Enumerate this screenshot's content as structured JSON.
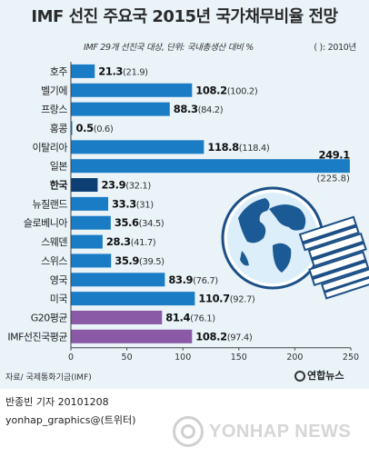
{
  "title": "IMF 선진 주요국 2015년 국가채무비율 전망",
  "note": "IMF 29개 선진국 대상, 단위: 국내총생산 대비 %",
  "note_right": "(  ): 2010년",
  "source": "자료/ 국제통화기금(IMF)",
  "logo": "연합뉴스",
  "credit_line1": "반종빈 기자 20101208",
  "credit_line2": "yonhap_graphics@(트위터)",
  "watermark": "YONHAP NEWS",
  "colors": {
    "bar": "#1a7cc4",
    "highlight": "#0d3f75",
    "average": "#8a5aa6",
    "background": "#e9f3f8"
  },
  "chart_data": {
    "type": "bar",
    "orientation": "horizontal",
    "categories": [
      "호주",
      "벨기에",
      "프랑스",
      "홍콩",
      "이탈리아",
      "일본",
      "한국",
      "뉴질랜드",
      "슬로베니아",
      "스웨덴",
      "스위스",
      "영국",
      "미국",
      "G20평균",
      "IMF선진국평균"
    ],
    "series": [
      {
        "values": [
          21.3,
          108.2,
          88.3,
          0.5,
          118.8,
          249.1,
          23.9,
          33.3,
          35.6,
          28.3,
          35.9,
          83.9,
          110.7,
          81.4,
          108.2
        ]
      }
    ],
    "values_2010": [
      21.9,
      100.2,
      84.2,
      0.6,
      118.4,
      225.8,
      32.1,
      31,
      34.5,
      41.7,
      39.5,
      76.7,
      92.7,
      76.1,
      97.4
    ],
    "value_labels": [
      "21.3",
      "108.2",
      "88.3",
      "0.5",
      "118.8",
      "249.1",
      "23.9",
      "33.3",
      "35.6",
      "28.3",
      "35.9",
      "83.9",
      "110.7",
      "81.4",
      "108.2"
    ],
    "labels_2010": [
      "(21.9)",
      "(100.2)",
      "(84.2)",
      "(0.6)",
      "(118.4)",
      "(225.8)",
      "(32.1)",
      "(31)",
      "(34.5)",
      "(41.7)",
      "(39.5)",
      "(76.7)",
      "(92.7)",
      "(76.1)",
      "(97.4)"
    ],
    "highlight": [
      "한국"
    ],
    "average_rows": [
      "G20평균",
      "IMF선진국평균"
    ],
    "x_ticks": [
      0,
      50,
      100,
      150,
      200,
      250
    ],
    "xlim": [
      0,
      250
    ],
    "grid": false,
    "legend": "none"
  }
}
